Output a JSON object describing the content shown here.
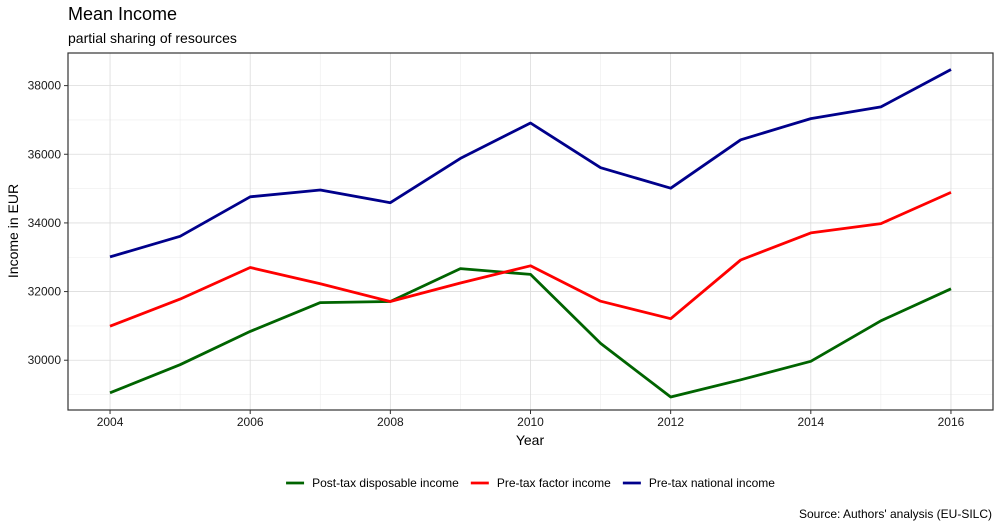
{
  "chart_data": {
    "type": "line",
    "title": "Mean Income",
    "subtitle": "partial sharing of resources",
    "caption": "Source: Authors' analysis (EU-SILC)",
    "xlabel": "Year",
    "ylabel": "Income in EUR",
    "x": [
      2004,
      2005,
      2006,
      2007,
      2008,
      2009,
      2010,
      2011,
      2012,
      2013,
      2014,
      2015,
      2016
    ],
    "x_ticks": [
      2004,
      2006,
      2008,
      2010,
      2012,
      2014,
      2016
    ],
    "y_ticks": [
      30000,
      32000,
      34000,
      36000,
      38000
    ],
    "xlim": [
      2003.4,
      2016.6
    ],
    "ylim": [
      28550,
      38950
    ],
    "grid": true,
    "legend_position": "bottom",
    "series": [
      {
        "name": "Post-tax disposable income",
        "color": "#006400",
        "values": [
          29050,
          29870,
          30840,
          31680,
          31710,
          32670,
          32500,
          30490,
          28930,
          29430,
          29970,
          31150,
          32080
        ]
      },
      {
        "name": "Pre-tax factor income",
        "color": "#ff0000",
        "values": [
          30990,
          31780,
          32700,
          32230,
          31710,
          32250,
          32750,
          31720,
          31210,
          32920,
          33710,
          33980,
          34890
        ]
      },
      {
        "name": "Pre-tax national income",
        "color": "#00008b",
        "values": [
          33010,
          33610,
          34760,
          34960,
          34590,
          35880,
          36910,
          35610,
          35010,
          36420,
          37040,
          37380,
          38470
        ]
      }
    ]
  }
}
